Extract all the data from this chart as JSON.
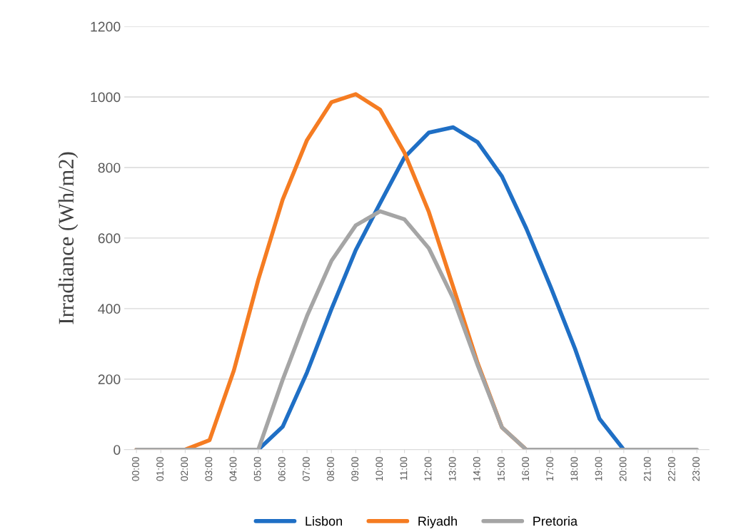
{
  "chart_data": {
    "type": "line",
    "ylabel": "Irradiance (Wh/m2)",
    "categories": [
      "00:00",
      "01:00",
      "02:00",
      "03:00",
      "04:00",
      "05:00",
      "06:00",
      "07:00",
      "08:00",
      "09:00",
      "10:00",
      "11:00",
      "12:00",
      "13:00",
      "14:00",
      "15:00",
      "16:00",
      "17:00",
      "18:00",
      "19:00",
      "20:00",
      "21:00",
      "22:00",
      "23:00"
    ],
    "series": [
      {
        "name": "Lisbon",
        "color": "#1f6fc5",
        "values": [
          null,
          null,
          null,
          null,
          0,
          0,
          65,
          219,
          398,
          566,
          699,
          829,
          899,
          914,
          872,
          775,
          627,
          461,
          286,
          88,
          0,
          0,
          null,
          null
        ]
      },
      {
        "name": "Riyadh",
        "color": "#f57c22",
        "values": [
          0,
          0,
          0,
          27,
          225,
          482,
          709,
          878,
          985,
          1008,
          964,
          842,
          674,
          461,
          246,
          63,
          0,
          null,
          null,
          null,
          null,
          null,
          null,
          null
        ]
      },
      {
        "name": "Pretoria",
        "color": "#a5a5a5",
        "values": [
          0,
          0,
          0,
          0,
          0,
          0,
          198,
          379,
          535,
          636,
          676,
          653,
          571,
          429,
          240,
          63,
          0,
          0,
          0,
          0,
          0,
          0,
          0,
          0
        ]
      }
    ],
    "ylim": [
      0,
      1200
    ],
    "yticks": [
      0,
      200,
      400,
      600,
      800,
      1000,
      1200
    ],
    "grid": "y",
    "legend": "bottom",
    "marker": "none",
    "line_style": "solid"
  }
}
